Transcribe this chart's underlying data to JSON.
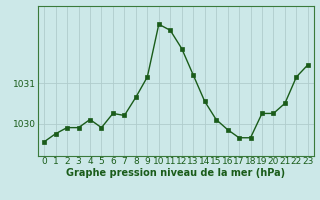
{
  "x": [
    0,
    1,
    2,
    3,
    4,
    5,
    6,
    7,
    8,
    9,
    10,
    11,
    12,
    13,
    14,
    15,
    16,
    17,
    18,
    19,
    20,
    21,
    22,
    23
  ],
  "y": [
    1029.55,
    1029.75,
    1029.9,
    1029.9,
    1030.1,
    1029.9,
    1030.25,
    1030.2,
    1030.65,
    1031.15,
    1032.45,
    1032.3,
    1031.85,
    1031.2,
    1030.55,
    1030.1,
    1029.85,
    1029.65,
    1029.65,
    1030.25,
    1030.25,
    1030.5,
    1031.15,
    1031.45
  ],
  "line_color": "#1a5c1a",
  "marker_color": "#1a5c1a",
  "bg_color": "#cce8e8",
  "grid_color": "#b0cccc",
  "xlabel": "Graphe pression niveau de la mer (hPa)",
  "xlabel_color": "#1a5c1a",
  "ytick_labels": [
    "1030",
    "1031"
  ],
  "ytick_values": [
    1030,
    1031
  ],
  "ylim": [
    1029.2,
    1032.9
  ],
  "xlim": [
    -0.5,
    23.5
  ],
  "xtick_labels": [
    "0",
    "1",
    "2",
    "3",
    "4",
    "5",
    "6",
    "7",
    "8",
    "9",
    "10",
    "11",
    "12",
    "13",
    "14",
    "15",
    "16",
    "17",
    "18",
    "19",
    "20",
    "21",
    "22",
    "23"
  ],
  "title_color": "#1a5c1a",
  "axis_color": "#3a7a3a",
  "font_size_xlabel": 7.0,
  "font_size_tick": 6.5,
  "linewidth": 1.0,
  "markersize": 2.2
}
